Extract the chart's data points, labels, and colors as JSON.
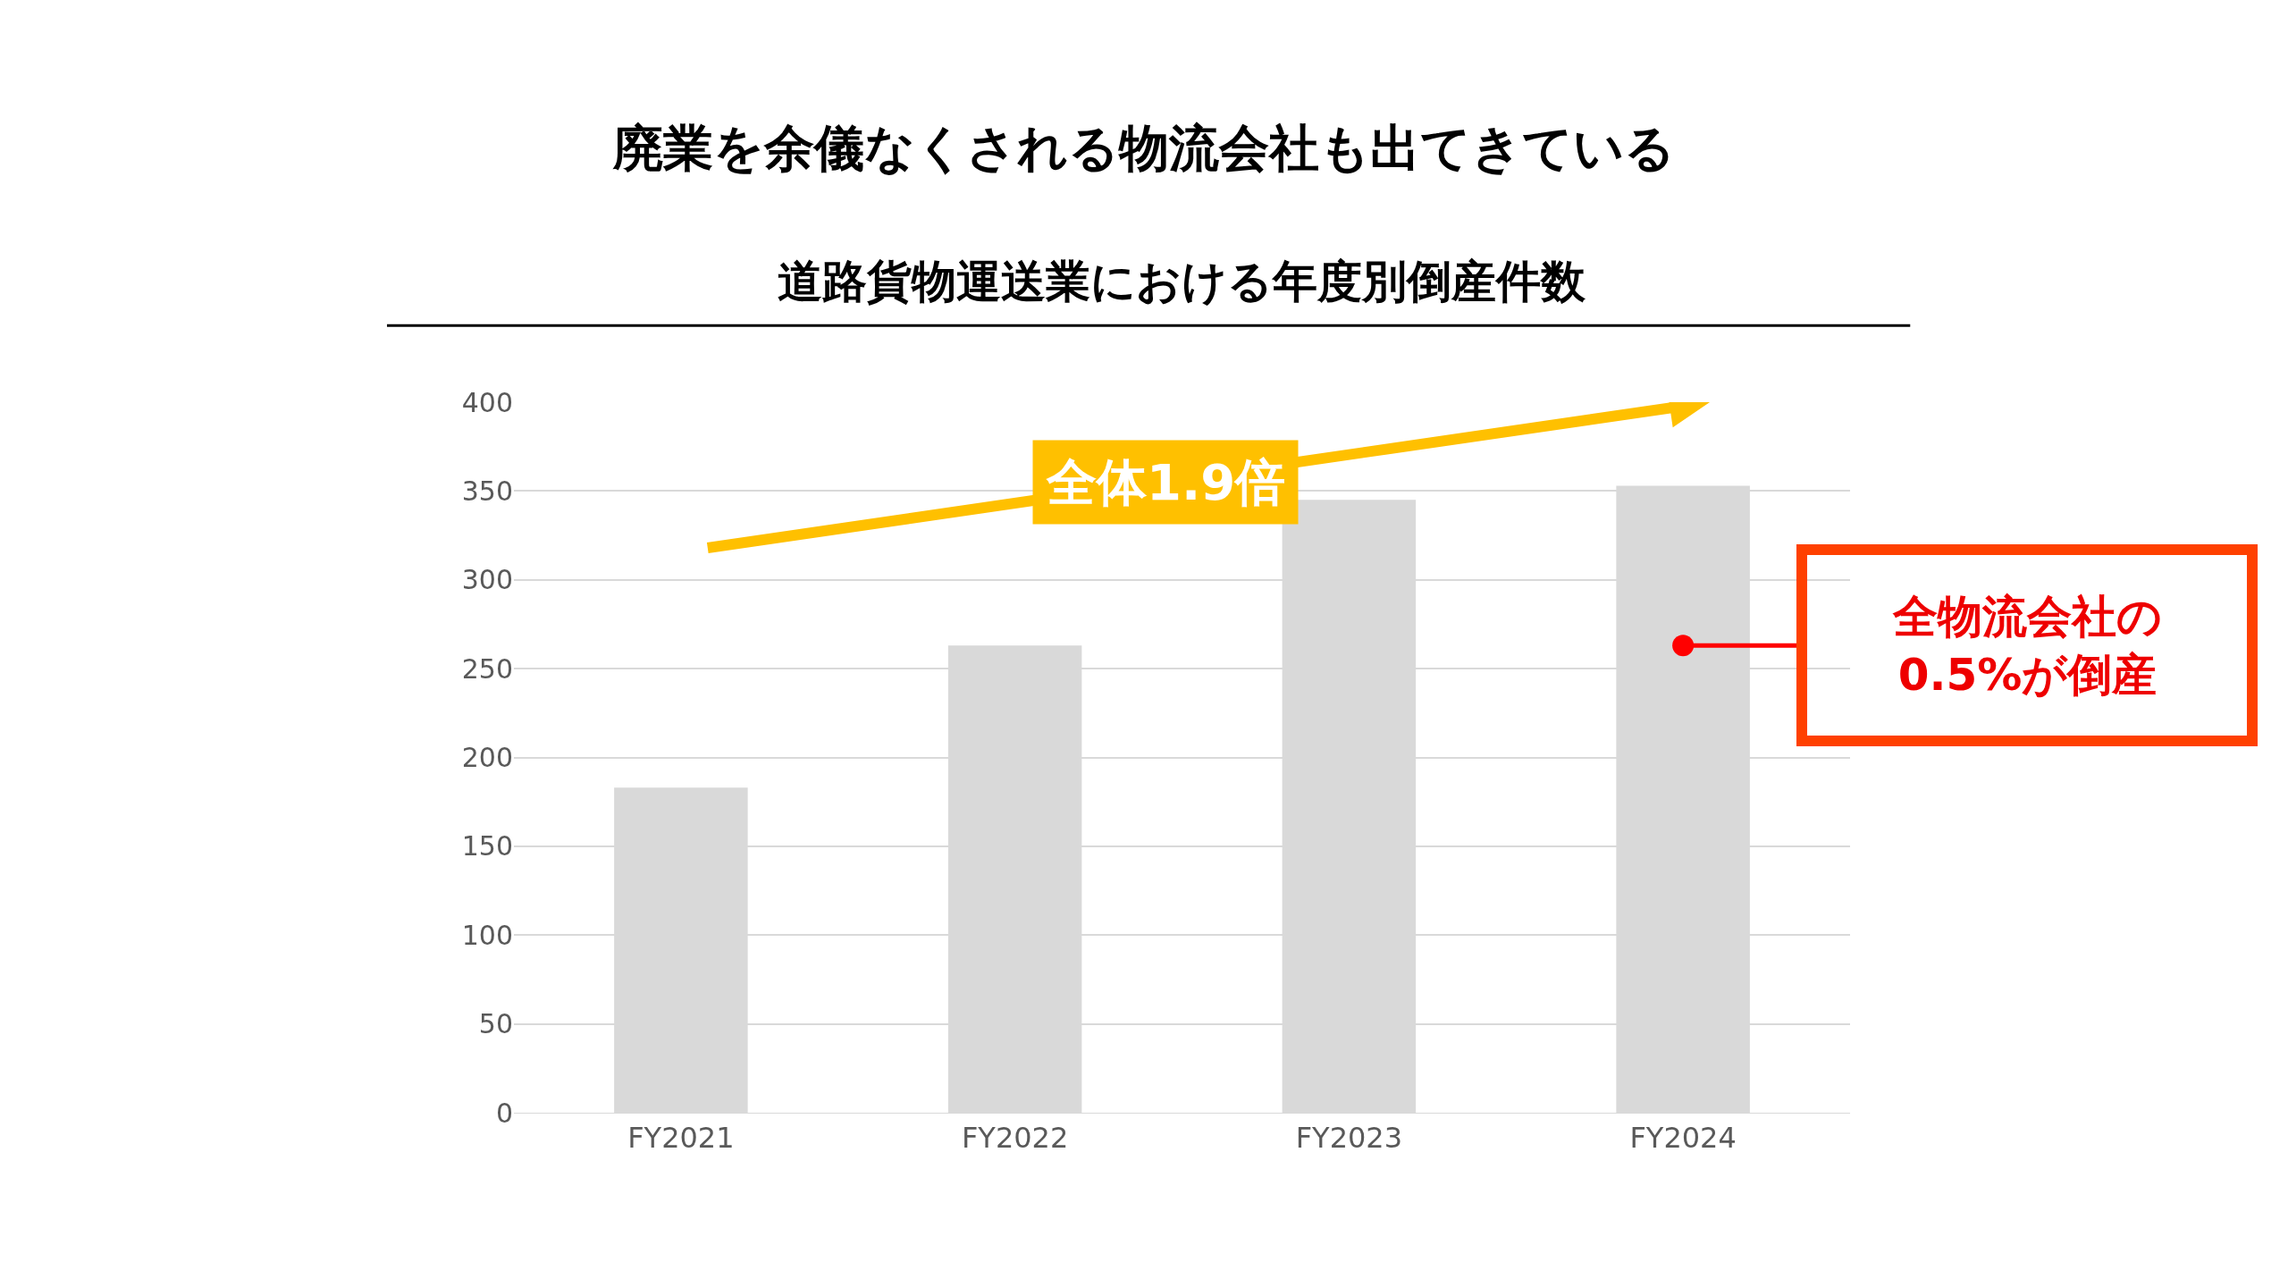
{
  "chart_data": {
    "type": "bar",
    "title": "廃業を余儀なくされる物流会社も出てきている",
    "subtitle": "道路貨物運送業における年度別倒産件数",
    "categories": [
      "FY2021",
      "FY2022",
      "FY2023",
      "FY2024"
    ],
    "values": [
      183,
      263,
      345,
      353
    ],
    "color": "#d9d9d9",
    "ylim": [
      0,
      400
    ],
    "yticks": [
      0,
      50,
      100,
      150,
      200,
      250,
      300,
      350,
      400
    ],
    "grid": "y",
    "annotations": [
      "全体1.9倍",
      "全物流会社の\n0.5%が倒産"
    ]
  }
}
